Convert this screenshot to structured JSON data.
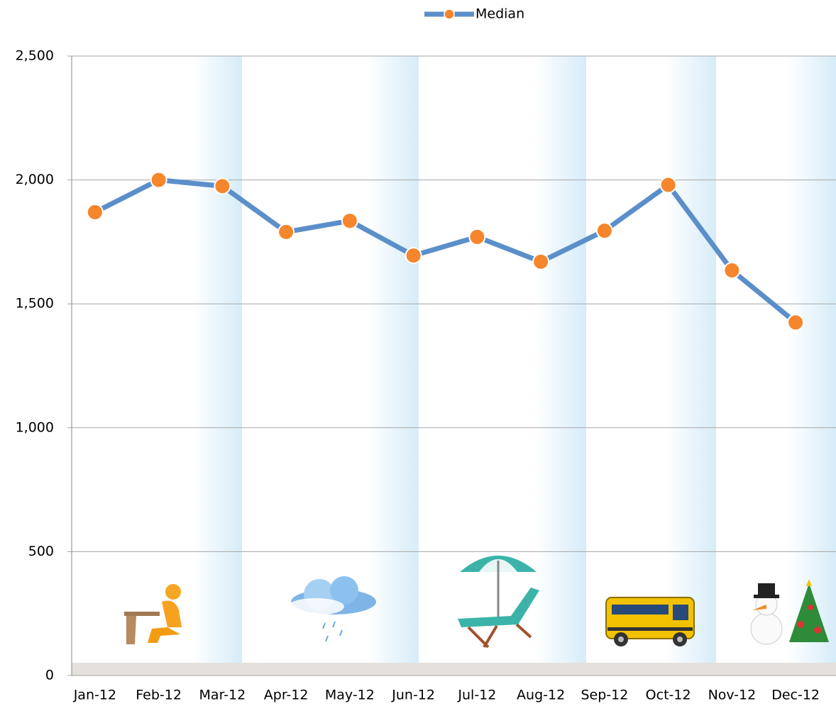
{
  "chart_data": {
    "type": "line",
    "categories": [
      "Jan-12",
      "Feb-12",
      "Mar-12",
      "Apr-12",
      "May-12",
      "Jun-12",
      "Jul-12",
      "Aug-12",
      "Sep-12",
      "Oct-12",
      "Nov-12",
      "Dec-12"
    ],
    "series": [
      {
        "name": "Median",
        "color": "#5b8fca",
        "marker_color": "#f5862b",
        "values": [
          1870,
          2000,
          1975,
          1790,
          1835,
          1695,
          1770,
          1670,
          1795,
          1980,
          1635,
          1425
        ]
      }
    ],
    "ylim": [
      0,
      2500
    ],
    "yticks": [
      0,
      500,
      {
        "value": 1000,
        "label": "1,000"
      },
      {
        "value": 1500,
        "label": "1,500"
      },
      {
        "value": 2000,
        "label": "2,000"
      },
      {
        "value": 2500,
        "label": "2,500"
      }
    ],
    "grid": true,
    "legend": "top"
  }
}
